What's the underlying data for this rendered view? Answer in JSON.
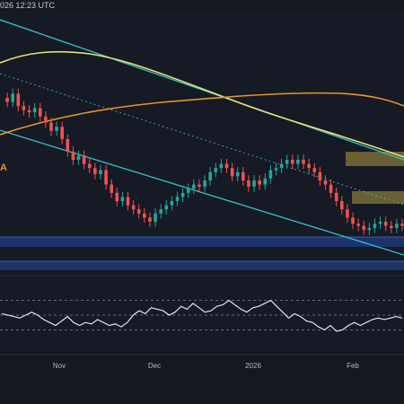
{
  "header": {
    "timestamp": "026 12:23 UTC"
  },
  "colors": {
    "background": "#141821",
    "up_candle": "#26a69a",
    "down_candle": "#ef5350",
    "channel_line": "#35c4c4",
    "ma_yellow": "#e8e07a",
    "ma_orange": "#e8922e",
    "zone_yellow": "#857a3a",
    "zone_blue": "#1e3a78",
    "rsi_line": "#dfe3ec",
    "dashed_level": "#7d8290"
  },
  "chart_data": {
    "type": "line",
    "title": "",
    "overlay_labels": [
      "A"
    ],
    "x_tick_labels": [
      "Nov",
      "Dec",
      "2026",
      "Feb"
    ],
    "main_panel": {
      "description_of_series": [
        "price_candles",
        "channel_upper",
        "channel_lower",
        "channel_mid_dotted",
        "ma_yellow",
        "ma_orange"
      ],
      "close": [
        70,
        68,
        72,
        66,
        64,
        63,
        65,
        61,
        58,
        54,
        56,
        50,
        44,
        40,
        42,
        38,
        36,
        33,
        35,
        28,
        24,
        20,
        22,
        18,
        16,
        14,
        12,
        10,
        14,
        16,
        18,
        20,
        22,
        24,
        26,
        28,
        27,
        30,
        34,
        36,
        38,
        36,
        32,
        34,
        30,
        27,
        30,
        28,
        31,
        35,
        36,
        38,
        40,
        38,
        40,
        38,
        36,
        34,
        30,
        28,
        24,
        20,
        16,
        12,
        9,
        8,
        6,
        7,
        9,
        10,
        8,
        7,
        9,
        8
      ],
      "relative_scale_note": "values are relative price index 0-100 read off the chart, no price axis visible",
      "ylim": [
        0,
        100
      ]
    },
    "rsi_panel": {
      "values": [
        52,
        50,
        48,
        46,
        50,
        54,
        50,
        44,
        40,
        36,
        42,
        48,
        40,
        36,
        40,
        38,
        44,
        40,
        36,
        38,
        34,
        40,
        50,
        56,
        52,
        60,
        58,
        56,
        50,
        54,
        62,
        58,
        66,
        60,
        54,
        56,
        62,
        64,
        70,
        64,
        58,
        54,
        60,
        62,
        66,
        70,
        62,
        54,
        46,
        52,
        48,
        42,
        40,
        34,
        30,
        36,
        28,
        30,
        36,
        40,
        36,
        40,
        44,
        46,
        44,
        46,
        48,
        46
      ],
      "levels": [
        70,
        50,
        30
      ],
      "ylim": [
        0,
        100
      ]
    }
  }
}
